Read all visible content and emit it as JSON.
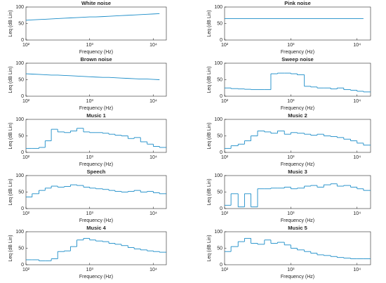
{
  "chart_data": [
    {
      "type": "line",
      "title": "White noise",
      "xlabel": "Frequency (Hz)",
      "ylabel": "Leq (dB Lin)",
      "xscale": "log",
      "xlim": [
        100,
        16000
      ],
      "xticks": [
        {
          "value": 100,
          "label": "10²"
        },
        {
          "value": 1000,
          "label": "10³"
        },
        {
          "value": 10000,
          "label": "10⁴"
        }
      ],
      "ylim": [
        0,
        100
      ],
      "yticks": [
        0,
        50,
        100
      ],
      "x": [
        100,
        125,
        160,
        200,
        250,
        315,
        400,
        500,
        630,
        800,
        1000,
        1250,
        1600,
        2000,
        2500,
        3150,
        4000,
        5000,
        6300,
        8000,
        10000,
        12500
      ],
      "series": [
        {
          "color": "#1a8cc8",
          "values": [
            60,
            61,
            62,
            63,
            64,
            65,
            66,
            67,
            68,
            69,
            70,
            70,
            71,
            72,
            73,
            74,
            75,
            76,
            77,
            78,
            79,
            80
          ]
        }
      ]
    },
    {
      "type": "line",
      "title": "Pink noise",
      "xlabel": "Frequency (Hz)",
      "ylabel": "Leq (dB Lin)",
      "xscale": "log",
      "xlim": [
        100,
        16000
      ],
      "xticks": [
        {
          "value": 100,
          "label": "10²"
        },
        {
          "value": 1000,
          "label": "10³"
        },
        {
          "value": 10000,
          "label": "10⁴"
        }
      ],
      "ylim": [
        0,
        100
      ],
      "yticks": [
        0,
        50,
        100
      ],
      "x": [
        100,
        125,
        160,
        200,
        250,
        315,
        400,
        500,
        630,
        800,
        1000,
        1250,
        1600,
        2000,
        2500,
        3150,
        4000,
        5000,
        6300,
        8000,
        10000,
        12500
      ],
      "series": [
        {
          "color": "#1a8cc8",
          "values": [
            65,
            65,
            65,
            65,
            65,
            65,
            65,
            65,
            65,
            65,
            65,
            65,
            65,
            65,
            65,
            65,
            65,
            65,
            65,
            65,
            65,
            65
          ]
        }
      ]
    },
    {
      "type": "line",
      "title": "Brown noise",
      "xlabel": "Frequency (Hz)",
      "ylabel": "Leq (dB Lin)",
      "xscale": "log",
      "xlim": [
        100,
        16000
      ],
      "xticks": [
        {
          "value": 100,
          "label": "10²"
        },
        {
          "value": 1000,
          "label": "10³"
        },
        {
          "value": 10000,
          "label": "10⁴"
        }
      ],
      "ylim": [
        0,
        100
      ],
      "yticks": [
        0,
        50,
        100
      ],
      "x": [
        100,
        125,
        160,
        200,
        250,
        315,
        400,
        500,
        630,
        800,
        1000,
        1250,
        1600,
        2000,
        2500,
        3150,
        4000,
        5000,
        6300,
        8000,
        10000,
        12500
      ],
      "series": [
        {
          "color": "#1a8cc8",
          "values": [
            68,
            67,
            66,
            65,
            64,
            64,
            63,
            62,
            61,
            60,
            59,
            58,
            57,
            57,
            56,
            55,
            54,
            53,
            52,
            52,
            51,
            50
          ]
        }
      ]
    },
    {
      "type": "step",
      "title": "Sweep noise",
      "xlabel": "Frequency (Hz)",
      "ylabel": "Leq (dB Lin)",
      "xscale": "log",
      "xlim": [
        100,
        16000
      ],
      "xticks": [
        {
          "value": 100,
          "label": "10²"
        },
        {
          "value": 1000,
          "label": "10³"
        },
        {
          "value": 10000,
          "label": "10⁴"
        }
      ],
      "ylim": [
        0,
        100
      ],
      "yticks": [
        0,
        50,
        100
      ],
      "x": [
        100,
        125,
        160,
        200,
        250,
        315,
        400,
        500,
        630,
        800,
        1000,
        1250,
        1600,
        2000,
        2500,
        3150,
        4000,
        5000,
        6300,
        8000,
        10000,
        12500
      ],
      "series": [
        {
          "color": "#1a8cc8",
          "values": [
            25,
            23,
            22,
            21,
            20,
            20,
            20,
            68,
            70,
            70,
            68,
            65,
            30,
            28,
            25,
            25,
            22,
            25,
            20,
            18,
            15,
            13
          ]
        }
      ]
    },
    {
      "type": "step",
      "title": "Music 1",
      "xlabel": "Frequency (Hz)",
      "ylabel": "Leq (dB Lin)",
      "xscale": "log",
      "xlim": [
        100,
        16000
      ],
      "xticks": [
        {
          "value": 100,
          "label": "10²"
        },
        {
          "value": 1000,
          "label": "10³"
        },
        {
          "value": 10000,
          "label": "10⁴"
        }
      ],
      "ylim": [
        0,
        100
      ],
      "yticks": [
        0,
        50,
        100
      ],
      "x": [
        100,
        125,
        160,
        200,
        250,
        315,
        400,
        500,
        630,
        800,
        1000,
        1250,
        1600,
        2000,
        2500,
        3150,
        4000,
        5000,
        6300,
        8000,
        10000,
        12500
      ],
      "series": [
        {
          "color": "#1a8cc8",
          "values": [
            12,
            12,
            15,
            35,
            70,
            62,
            60,
            65,
            73,
            62,
            60,
            60,
            58,
            55,
            52,
            50,
            42,
            45,
            32,
            25,
            18,
            15
          ]
        }
      ]
    },
    {
      "type": "step",
      "title": "Music 2",
      "xlabel": "Frequency (Hz)",
      "ylabel": "Leq (dB Lin)",
      "xscale": "log",
      "xlim": [
        100,
        16000
      ],
      "xticks": [
        {
          "value": 100,
          "label": "10²"
        },
        {
          "value": 1000,
          "label": "10³"
        },
        {
          "value": 10000,
          "label": "10⁴"
        }
      ],
      "ylim": [
        0,
        100
      ],
      "yticks": [
        0,
        50,
        100
      ],
      "x": [
        100,
        125,
        160,
        200,
        250,
        315,
        400,
        500,
        630,
        800,
        1000,
        1250,
        1600,
        2000,
        2500,
        3150,
        4000,
        5000,
        6300,
        8000,
        10000,
        12500
      ],
      "series": [
        {
          "color": "#1a8cc8",
          "values": [
            12,
            20,
            25,
            35,
            50,
            65,
            62,
            58,
            65,
            55,
            60,
            58,
            55,
            52,
            55,
            50,
            48,
            45,
            40,
            35,
            28,
            22
          ]
        }
      ]
    },
    {
      "type": "step",
      "title": "Speech",
      "xlabel": "Frequency (Hz)",
      "ylabel": "Leq (dB Lin)",
      "xscale": "log",
      "xlim": [
        100,
        16000
      ],
      "xticks": [
        {
          "value": 100,
          "label": "10²"
        },
        {
          "value": 1000,
          "label": "10³"
        },
        {
          "value": 10000,
          "label": "10⁴"
        }
      ],
      "ylim": [
        0,
        100
      ],
      "yticks": [
        0,
        50,
        100
      ],
      "x": [
        100,
        125,
        160,
        200,
        250,
        315,
        400,
        500,
        630,
        800,
        1000,
        1250,
        1600,
        2000,
        2500,
        3150,
        4000,
        5000,
        6300,
        8000,
        10000,
        12500
      ],
      "series": [
        {
          "color": "#1a8cc8",
          "values": [
            35,
            45,
            55,
            62,
            68,
            65,
            67,
            72,
            70,
            65,
            62,
            60,
            58,
            55,
            52,
            50,
            52,
            55,
            50,
            52,
            48,
            45
          ]
        }
      ]
    },
    {
      "type": "step",
      "title": "Music 3",
      "xlabel": "Frequency (Hz)",
      "ylabel": "Leq (dB Lin)",
      "xscale": "log",
      "xlim": [
        100,
        16000
      ],
      "xticks": [
        {
          "value": 100,
          "label": "10²"
        },
        {
          "value": 1000,
          "label": "10³"
        },
        {
          "value": 10000,
          "label": "10⁴"
        }
      ],
      "ylim": [
        0,
        100
      ],
      "yticks": [
        0,
        50,
        100
      ],
      "x": [
        100,
        125,
        160,
        200,
        250,
        315,
        400,
        500,
        630,
        800,
        1000,
        1250,
        1600,
        2000,
        2500,
        3150,
        4000,
        5000,
        6300,
        8000,
        10000,
        12500
      ],
      "series": [
        {
          "color": "#1a8cc8",
          "values": [
            10,
            45,
            5,
            45,
            5,
            60,
            60,
            62,
            62,
            65,
            60,
            62,
            68,
            70,
            65,
            72,
            75,
            68,
            70,
            65,
            60,
            55
          ]
        }
      ]
    },
    {
      "type": "step",
      "title": "Music 4",
      "xlabel": "Frequency (Hz)",
      "ylabel": "Leq (dB Lin)",
      "xscale": "log",
      "xlim": [
        100,
        16000
      ],
      "xticks": [
        {
          "value": 100,
          "label": "10²"
        },
        {
          "value": 1000,
          "label": "10³"
        },
        {
          "value": 10000,
          "label": "10⁴"
        }
      ],
      "ylim": [
        0,
        100
      ],
      "yticks": [
        0,
        50,
        100
      ],
      "x": [
        100,
        125,
        160,
        200,
        250,
        315,
        400,
        500,
        630,
        800,
        1000,
        1250,
        1600,
        2000,
        2500,
        3150,
        4000,
        5000,
        6300,
        8000,
        10000,
        12500
      ],
      "series": [
        {
          "color": "#1a8cc8",
          "values": [
            15,
            15,
            12,
            12,
            18,
            40,
            42,
            55,
            75,
            80,
            75,
            72,
            70,
            65,
            62,
            58,
            52,
            48,
            45,
            42,
            40,
            38
          ]
        }
      ]
    },
    {
      "type": "step",
      "title": "Music 5",
      "xlabel": "Frequency (Hz)",
      "ylabel": "Leq (dB Lin)",
      "xscale": "log",
      "xlim": [
        100,
        16000
      ],
      "xticks": [
        {
          "value": 100,
          "label": "10²"
        },
        {
          "value": 1000,
          "label": "10³"
        },
        {
          "value": 10000,
          "label": "10⁴"
        }
      ],
      "ylim": [
        0,
        100
      ],
      "yticks": [
        0,
        50,
        100
      ],
      "x": [
        100,
        125,
        160,
        200,
        250,
        315,
        400,
        500,
        630,
        800,
        1000,
        1250,
        1600,
        2000,
        2500,
        3150,
        4000,
        5000,
        6300,
        8000,
        10000,
        12500
      ],
      "series": [
        {
          "color": "#1a8cc8",
          "values": [
            40,
            55,
            70,
            80,
            65,
            62,
            75,
            65,
            68,
            60,
            50,
            45,
            40,
            35,
            30,
            28,
            25,
            22,
            20,
            18,
            18,
            18
          ]
        }
      ]
    }
  ]
}
